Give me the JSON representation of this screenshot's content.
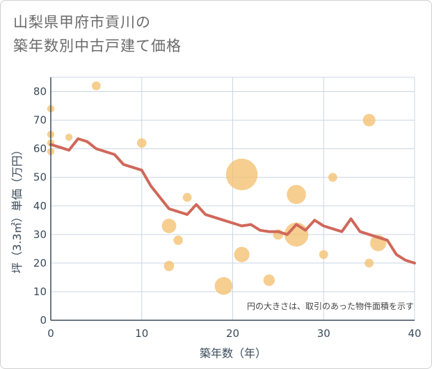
{
  "chart_data": {
    "type": "scatter",
    "title": [
      "山梨県甲府市貢川の",
      "築年数別中古戸建て価格"
    ],
    "xlabel": "築年数（年）",
    "ylabel": "坪（3.3㎡）単価（万円）",
    "xlim": [
      0,
      40
    ],
    "ylim": [
      0,
      85
    ],
    "xticks": [
      0,
      10,
      20,
      30,
      40
    ],
    "yticks": [
      0,
      10,
      20,
      30,
      40,
      50,
      60,
      70,
      80
    ],
    "grid": true,
    "note": "円の大きさは、取引のあった物件面積を示す",
    "bubble_color": "#f3c070",
    "line_color": "#d0685a",
    "bubbles": [
      {
        "x": 0,
        "y": 74,
        "size": 1
      },
      {
        "x": 0,
        "y": 65,
        "size": 1
      },
      {
        "x": 0,
        "y": 62,
        "size": 1
      },
      {
        "x": 0,
        "y": 59,
        "size": 1
      },
      {
        "x": 2,
        "y": 64,
        "size": 1
      },
      {
        "x": 5,
        "y": 82,
        "size": 1.5
      },
      {
        "x": 10,
        "y": 62,
        "size": 1.7
      },
      {
        "x": 13,
        "y": 33,
        "size": 4
      },
      {
        "x": 13,
        "y": 19,
        "size": 2
      },
      {
        "x": 14,
        "y": 28,
        "size": 1.7
      },
      {
        "x": 15,
        "y": 43,
        "size": 1.5
      },
      {
        "x": 19,
        "y": 12,
        "size": 6
      },
      {
        "x": 21,
        "y": 51,
        "size": 19
      },
      {
        "x": 21,
        "y": 23,
        "size": 4.5
      },
      {
        "x": 24,
        "y": 14,
        "size": 2.5
      },
      {
        "x": 25,
        "y": 30,
        "size": 2
      },
      {
        "x": 27,
        "y": 44,
        "size": 7
      },
      {
        "x": 27,
        "y": 30,
        "size": 11
      },
      {
        "x": 30,
        "y": 23,
        "size": 1.5
      },
      {
        "x": 31,
        "y": 50,
        "size": 1.5
      },
      {
        "x": 35,
        "y": 70,
        "size": 3
      },
      {
        "x": 35,
        "y": 20,
        "size": 1.5
      },
      {
        "x": 36,
        "y": 27,
        "size": 5
      }
    ],
    "trend": {
      "x": [
        0,
        1,
        2,
        3,
        4,
        5,
        6,
        7,
        8,
        9,
        10,
        11,
        12,
        13,
        14,
        15,
        16,
        17,
        18,
        19,
        20,
        21,
        22,
        23,
        24,
        25,
        26,
        27,
        28,
        29,
        30,
        31,
        32,
        33,
        34,
        35,
        36,
        37,
        38,
        39,
        40
      ],
      "y": [
        61.5,
        60.5,
        59.5,
        63.5,
        62.5,
        60,
        59,
        58,
        54.5,
        53.5,
        52.5,
        47,
        43,
        39,
        38,
        37,
        40.5,
        37,
        36,
        35,
        34,
        33,
        33.5,
        31.5,
        31,
        31,
        30,
        33.5,
        31.5,
        35,
        33,
        32,
        31,
        35.5,
        31,
        30,
        29,
        28,
        23,
        21,
        20
      ]
    }
  }
}
